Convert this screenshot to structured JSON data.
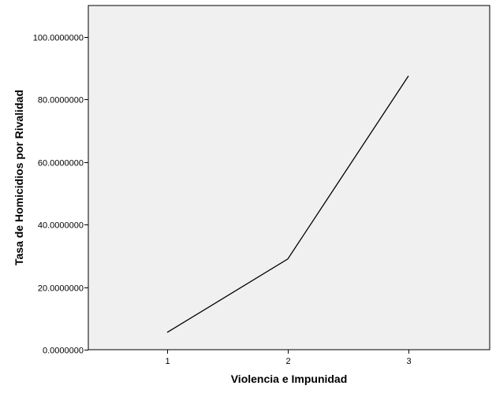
{
  "chart_data": {
    "type": "line",
    "xlabel": "Violencia e Impunidad",
    "ylabel": "Tasa de Homicidios por Rivalidad",
    "categories": [
      "1",
      "2",
      "3"
    ],
    "series": [
      {
        "values": [
          5.5,
          29.0,
          87.5
        ]
      }
    ],
    "ylim": [
      0,
      110
    ],
    "yticks": [
      0,
      20,
      40,
      60,
      80,
      100
    ],
    "ytick_labels": [
      "0.0000000",
      "20.0000000",
      "40.0000000",
      "60.0000000",
      "80.0000000",
      "100.0000000"
    ],
    "grid": false,
    "colors": {
      "plot_background": "#f0f0f0",
      "line": "#000000",
      "frame": "#000000"
    }
  }
}
